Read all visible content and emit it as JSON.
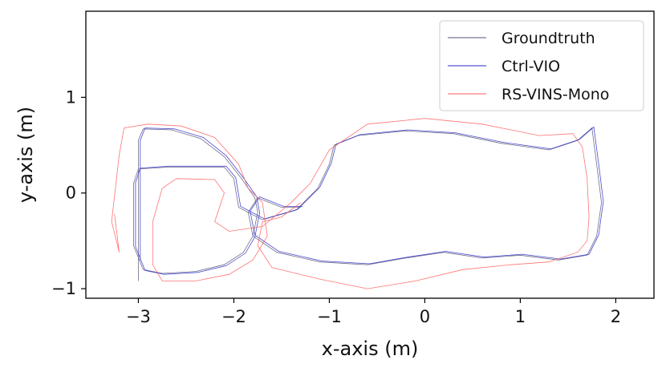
{
  "chart_data": {
    "type": "line",
    "xlabel": "x-axis (m)",
    "ylabel": "y-axis (m)",
    "xlim": [
      -3.55,
      2.4
    ],
    "ylim": [
      -1.1,
      1.9
    ],
    "xticks": [
      -3,
      -2,
      -1,
      0,
      1,
      2
    ],
    "yticks": [
      -1,
      0,
      1
    ],
    "xtick_labels": [
      "−3",
      "−2",
      "−1",
      "0",
      "1",
      "2"
    ],
    "ytick_labels": [
      "−1",
      "0",
      "1"
    ],
    "grid": false,
    "legend_position": "top-right",
    "series": [
      {
        "name": "Groundtruth",
        "color": "#555577",
        "points": [
          [
            -3.0,
            -0.92
          ],
          [
            -3.0,
            0.55
          ],
          [
            -2.95,
            0.67
          ],
          [
            -2.65,
            0.66
          ],
          [
            -2.35,
            0.57
          ],
          [
            -2.1,
            0.38
          ],
          [
            -1.92,
            0.15
          ],
          [
            -1.78,
            -0.05
          ],
          [
            -1.75,
            -0.2
          ],
          [
            -1.8,
            -0.45
          ],
          [
            -1.9,
            -0.62
          ],
          [
            -2.1,
            -0.75
          ],
          [
            -2.4,
            -0.82
          ],
          [
            -2.75,
            -0.84
          ],
          [
            -2.95,
            -0.8
          ],
          [
            -3.05,
            -0.55
          ],
          [
            -3.05,
            0.1
          ],
          [
            -3.0,
            0.25
          ],
          [
            -2.7,
            0.27
          ],
          [
            -2.1,
            0.27
          ],
          [
            -2.0,
            0.15
          ],
          [
            -1.95,
            -0.15
          ],
          [
            -1.7,
            -0.28
          ],
          [
            -1.35,
            -0.18
          ],
          [
            -1.12,
            0.05
          ],
          [
            -1.0,
            0.3
          ],
          [
            -0.95,
            0.5
          ],
          [
            -0.7,
            0.6
          ],
          [
            -0.2,
            0.65
          ],
          [
            0.3,
            0.62
          ],
          [
            0.8,
            0.52
          ],
          [
            1.3,
            0.45
          ],
          [
            1.6,
            0.55
          ],
          [
            1.75,
            0.68
          ],
          [
            1.8,
            0.3
          ],
          [
            1.85,
            -0.1
          ],
          [
            1.8,
            -0.45
          ],
          [
            1.7,
            -0.65
          ],
          [
            1.4,
            -0.7
          ],
          [
            1.0,
            -0.65
          ],
          [
            0.6,
            -0.68
          ],
          [
            0.2,
            -0.62
          ],
          [
            -0.2,
            -0.68
          ],
          [
            -0.6,
            -0.75
          ],
          [
            -1.1,
            -0.72
          ],
          [
            -1.55,
            -0.62
          ],
          [
            -1.8,
            -0.45
          ],
          [
            -1.85,
            -0.2
          ],
          [
            -1.75,
            -0.05
          ],
          [
            -1.5,
            -0.15
          ],
          [
            -1.3,
            -0.15
          ]
        ]
      },
      {
        "name": "Ctrl-VIO",
        "color": "#2a2acc",
        "points": [
          [
            -2.98,
            -0.7
          ],
          [
            -2.98,
            0.55
          ],
          [
            -2.93,
            0.68
          ],
          [
            -2.62,
            0.67
          ],
          [
            -2.32,
            0.58
          ],
          [
            -2.08,
            0.39
          ],
          [
            -1.9,
            0.16
          ],
          [
            -1.76,
            -0.04
          ],
          [
            -1.73,
            -0.21
          ],
          [
            -1.78,
            -0.46
          ],
          [
            -1.88,
            -0.63
          ],
          [
            -2.08,
            -0.76
          ],
          [
            -2.38,
            -0.83
          ],
          [
            -2.73,
            -0.85
          ],
          [
            -2.93,
            -0.81
          ],
          [
            -3.03,
            -0.56
          ],
          [
            -3.03,
            0.11
          ],
          [
            -2.98,
            0.26
          ],
          [
            -2.68,
            0.28
          ],
          [
            -2.08,
            0.28
          ],
          [
            -1.98,
            0.16
          ],
          [
            -1.93,
            -0.14
          ],
          [
            -1.68,
            -0.27
          ],
          [
            -1.33,
            -0.17
          ],
          [
            -1.1,
            0.06
          ],
          [
            -0.98,
            0.31
          ],
          [
            -0.93,
            0.51
          ],
          [
            -0.68,
            0.61
          ],
          [
            -0.18,
            0.66
          ],
          [
            0.32,
            0.63
          ],
          [
            0.82,
            0.53
          ],
          [
            1.32,
            0.46
          ],
          [
            1.62,
            0.56
          ],
          [
            1.77,
            0.69
          ],
          [
            1.82,
            0.31
          ],
          [
            1.87,
            -0.09
          ],
          [
            1.82,
            -0.44
          ],
          [
            1.72,
            -0.64
          ],
          [
            1.42,
            -0.69
          ],
          [
            1.02,
            -0.64
          ],
          [
            0.62,
            -0.67
          ],
          [
            0.22,
            -0.61
          ],
          [
            -0.18,
            -0.67
          ],
          [
            -0.58,
            -0.74
          ],
          [
            -1.08,
            -0.71
          ],
          [
            -1.53,
            -0.61
          ],
          [
            -1.78,
            -0.44
          ],
          [
            -1.83,
            -0.19
          ],
          [
            -1.73,
            -0.04
          ],
          [
            -1.48,
            -0.14
          ],
          [
            -1.28,
            -0.14
          ]
        ]
      },
      {
        "name": "RS-VINS-Mono",
        "color": "#ff5a5a",
        "points": [
          [
            -3.25,
            -0.22
          ],
          [
            -3.2,
            -0.62
          ],
          [
            -3.28,
            -0.3
          ],
          [
            -3.2,
            0.4
          ],
          [
            -3.15,
            0.68
          ],
          [
            -2.9,
            0.72
          ],
          [
            -2.55,
            0.7
          ],
          [
            -2.2,
            0.58
          ],
          [
            -1.95,
            0.3
          ],
          [
            -1.85,
            0.05
          ],
          [
            -1.7,
            -0.1
          ],
          [
            -1.65,
            -0.45
          ],
          [
            -1.8,
            -0.7
          ],
          [
            -2.05,
            -0.85
          ],
          [
            -2.4,
            -0.92
          ],
          [
            -2.75,
            -0.92
          ],
          [
            -2.85,
            -0.75
          ],
          [
            -2.85,
            -0.3
          ],
          [
            -2.75,
            0.05
          ],
          [
            -2.6,
            0.15
          ],
          [
            -2.2,
            0.14
          ],
          [
            -2.1,
            0.0
          ],
          [
            -2.2,
            -0.3
          ],
          [
            -2.05,
            -0.4
          ],
          [
            -1.7,
            -0.35
          ],
          [
            -1.4,
            -0.1
          ],
          [
            -1.2,
            0.1
          ],
          [
            -1.0,
            0.45
          ],
          [
            -0.6,
            0.72
          ],
          [
            0.0,
            0.78
          ],
          [
            0.6,
            0.72
          ],
          [
            1.2,
            0.6
          ],
          [
            1.55,
            0.62
          ],
          [
            1.65,
            0.48
          ],
          [
            1.7,
            0.15
          ],
          [
            1.72,
            -0.25
          ],
          [
            1.7,
            -0.5
          ],
          [
            1.6,
            -0.62
          ],
          [
            1.3,
            -0.72
          ],
          [
            0.9,
            -0.75
          ],
          [
            0.4,
            -0.8
          ],
          [
            -0.1,
            -0.92
          ],
          [
            -0.6,
            -1.0
          ],
          [
            -1.1,
            -0.9
          ],
          [
            -1.6,
            -0.78
          ],
          [
            -1.75,
            -0.55
          ],
          [
            -1.7,
            -0.3
          ],
          [
            -1.5,
            -0.25
          ],
          [
            -1.3,
            -0.1
          ]
        ]
      }
    ]
  }
}
